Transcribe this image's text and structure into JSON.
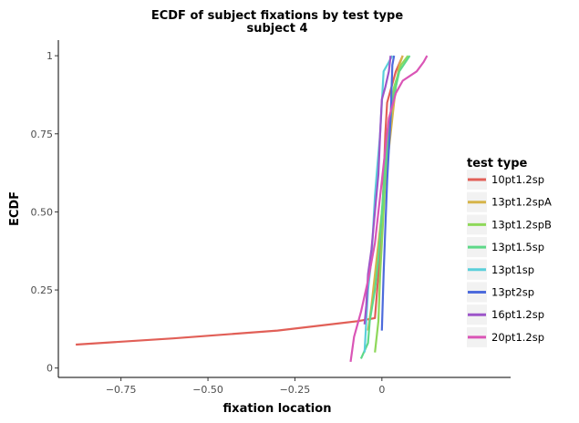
{
  "chart_data": {
    "type": "line",
    "title": "ECDF of subject fixations by test type",
    "subtitle": "subject 4",
    "xlabel": "fixation location",
    "ylabel": "ECDF",
    "xlim": [
      -0.93,
      0.37
    ],
    "ylim": [
      -0.03,
      1.05
    ],
    "x_ticks": [
      -0.75,
      -0.5,
      -0.25,
      0
    ],
    "x_tick_labels": [
      "−0.75",
      "−0.50",
      "−0.25",
      "0"
    ],
    "y_ticks": [
      0,
      0.25,
      0.5,
      0.75,
      1
    ],
    "y_tick_labels": [
      "0",
      "0.25",
      "0.50",
      "0.75",
      "1"
    ],
    "grid": false,
    "legend": {
      "title": "test type",
      "placement": "right"
    },
    "series": [
      {
        "name": "10pt1.2sp",
        "color": "#E15F57",
        "points": [
          [
            -0.88,
            0.075
          ],
          [
            -0.6,
            0.095
          ],
          [
            -0.3,
            0.12
          ],
          [
            -0.07,
            0.15
          ],
          [
            -0.02,
            0.16
          ],
          [
            -0.01,
            0.3
          ],
          [
            0.0,
            0.45
          ],
          [
            0.005,
            0.6
          ],
          [
            0.01,
            0.75
          ],
          [
            0.015,
            0.85
          ],
          [
            0.04,
            0.95
          ],
          [
            0.06,
            1.0
          ]
        ]
      },
      {
        "name": "13pt1.2spA",
        "color": "#D6B449",
        "points": [
          [
            -0.04,
            0.12
          ],
          [
            -0.03,
            0.2
          ],
          [
            -0.02,
            0.3
          ],
          [
            -0.01,
            0.4
          ],
          [
            0.0,
            0.5
          ],
          [
            0.01,
            0.6
          ],
          [
            0.02,
            0.7
          ],
          [
            0.03,
            0.8
          ],
          [
            0.04,
            0.9
          ],
          [
            0.05,
            0.97
          ],
          [
            0.06,
            1.0
          ]
        ]
      },
      {
        "name": "13pt1.2spB",
        "color": "#8ED85A",
        "points": [
          [
            -0.02,
            0.05
          ],
          [
            -0.01,
            0.15
          ],
          [
            -0.005,
            0.3
          ],
          [
            0.0,
            0.4
          ],
          [
            0.005,
            0.5
          ],
          [
            0.01,
            0.6
          ],
          [
            0.015,
            0.7
          ],
          [
            0.025,
            0.8
          ],
          [
            0.035,
            0.9
          ],
          [
            0.055,
            0.97
          ],
          [
            0.075,
            1.0
          ]
        ]
      },
      {
        "name": "13pt1.5sp",
        "color": "#5ED888",
        "points": [
          [
            -0.06,
            0.03
          ],
          [
            -0.04,
            0.08
          ],
          [
            -0.035,
            0.15
          ],
          [
            -0.02,
            0.25
          ],
          [
            -0.01,
            0.35
          ],
          [
            0.0,
            0.5
          ],
          [
            0.01,
            0.65
          ],
          [
            0.02,
            0.75
          ],
          [
            0.03,
            0.85
          ],
          [
            0.05,
            0.95
          ],
          [
            0.08,
            1.0
          ]
        ]
      },
      {
        "name": "13pt1sp",
        "color": "#5ACFDA",
        "points": [
          [
            -0.05,
            0.05
          ],
          [
            -0.045,
            0.15
          ],
          [
            -0.04,
            0.25
          ],
          [
            -0.03,
            0.35
          ],
          [
            -0.025,
            0.45
          ],
          [
            -0.02,
            0.55
          ],
          [
            -0.015,
            0.62
          ],
          [
            -0.005,
            0.75
          ],
          [
            0.0,
            0.85
          ],
          [
            0.005,
            0.95
          ],
          [
            0.02,
            0.98
          ],
          [
            0.03,
            1.0
          ]
        ]
      },
      {
        "name": "13pt2sp",
        "color": "#4D6BDC",
        "points": [
          [
            0.0,
            0.12
          ],
          [
            0.005,
            0.3
          ],
          [
            0.01,
            0.45
          ],
          [
            0.015,
            0.6
          ],
          [
            0.02,
            0.7
          ],
          [
            0.025,
            0.8
          ],
          [
            0.028,
            0.9
          ],
          [
            0.03,
            0.97
          ],
          [
            0.035,
            1.0
          ]
        ]
      },
      {
        "name": "16pt1.2sp",
        "color": "#9D55C9",
        "points": [
          [
            -0.05,
            0.14
          ],
          [
            -0.045,
            0.2
          ],
          [
            -0.04,
            0.3
          ],
          [
            -0.03,
            0.38
          ],
          [
            -0.02,
            0.5
          ],
          [
            -0.01,
            0.62
          ],
          [
            -0.005,
            0.75
          ],
          [
            0.0,
            0.86
          ],
          [
            0.01,
            0.9
          ],
          [
            0.02,
            0.95
          ],
          [
            0.025,
            1.0
          ]
        ]
      },
      {
        "name": "20pt1.2sp",
        "color": "#DA55B6",
        "points": [
          [
            -0.09,
            0.02
          ],
          [
            -0.085,
            0.06
          ],
          [
            -0.08,
            0.1
          ],
          [
            -0.06,
            0.18
          ],
          [
            -0.04,
            0.28
          ],
          [
            -0.02,
            0.4
          ],
          [
            -0.01,
            0.5
          ],
          [
            0.0,
            0.6
          ],
          [
            0.01,
            0.7
          ],
          [
            0.02,
            0.8
          ],
          [
            0.04,
            0.88
          ],
          [
            0.06,
            0.92
          ],
          [
            0.1,
            0.95
          ],
          [
            0.12,
            0.98
          ],
          [
            0.13,
            1.0
          ]
        ]
      }
    ]
  }
}
